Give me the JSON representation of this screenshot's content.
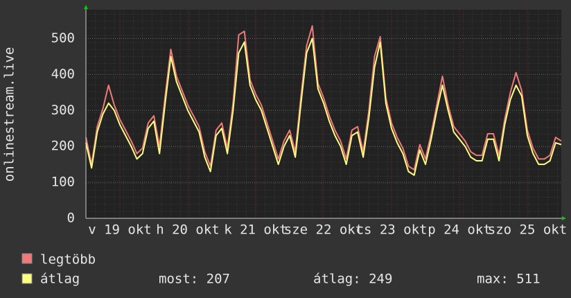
{
  "chart_data": {
    "type": "line",
    "y_label": "onlinestream.live",
    "x": [
      0,
      2,
      4,
      6,
      8,
      10,
      12,
      14,
      16,
      18,
      20,
      22,
      24,
      26,
      28,
      30,
      32,
      34,
      36,
      38,
      40,
      42,
      44,
      46,
      48,
      50,
      52,
      54,
      56,
      58,
      60,
      62,
      64,
      66,
      68,
      70,
      72,
      74,
      76,
      78,
      80,
      82,
      84,
      86,
      88,
      90,
      92,
      94,
      96,
      98,
      100,
      102,
      104,
      106,
      108,
      110,
      112,
      114,
      116,
      118,
      120,
      122,
      124,
      126,
      128,
      130,
      132,
      134,
      136,
      138,
      140,
      142,
      144,
      146,
      148,
      150,
      152,
      154,
      156,
      158,
      160,
      162,
      164,
      166,
      168
    ],
    "xlim": [
      0,
      168
    ],
    "xticks": [
      {
        "value": 12,
        "label": "v 19 okt"
      },
      {
        "value": 36,
        "label": "h 20 okt"
      },
      {
        "value": 60,
        "label": "k 21 okt"
      },
      {
        "value": 84,
        "label": "sze 22 okt"
      },
      {
        "value": 108,
        "label": "cs 23 okt"
      },
      {
        "value": 132,
        "label": "p 24 okt"
      },
      {
        "value": 156,
        "label": "szo 25 okt"
      }
    ],
    "ylim": [
      0,
      580
    ],
    "yticks": [
      0,
      100,
      200,
      300,
      400,
      500
    ],
    "grid": true,
    "series": [
      {
        "name": "legtöbb",
        "color": "#f07a7a",
        "values": [
          225,
          150,
          255,
          305,
          370,
          315,
          275,
          245,
          215,
          180,
          195,
          265,
          285,
          200,
          340,
          470,
          395,
          355,
          315,
          285,
          255,
          185,
          145,
          245,
          265,
          195,
          320,
          510,
          520,
          385,
          345,
          315,
          265,
          215,
          165,
          215,
          245,
          185,
          340,
          480,
          535,
          375,
          335,
          285,
          245,
          215,
          165,
          245,
          255,
          185,
          300,
          450,
          505,
          335,
          265,
          225,
          195,
          145,
          135,
          205,
          165,
          235,
          315,
          395,
          315,
          255,
          235,
          215,
          185,
          175,
          175,
          235,
          235,
          175,
          275,
          350,
          405,
          355,
          245,
          195,
          165,
          165,
          175,
          225,
          215
        ]
      },
      {
        "name": "átlag",
        "color": "#ffff80",
        "values": [
          210,
          140,
          240,
          290,
          320,
          300,
          260,
          230,
          200,
          165,
          180,
          250,
          270,
          180,
          320,
          450,
          380,
          340,
          300,
          270,
          240,
          170,
          130,
          230,
          250,
          180,
          300,
          460,
          490,
          370,
          330,
          300,
          250,
          200,
          150,
          200,
          230,
          170,
          320,
          460,
          500,
          360,
          320,
          270,
          230,
          200,
          150,
          230,
          240,
          170,
          280,
          420,
          490,
          320,
          250,
          210,
          180,
          130,
          120,
          190,
          150,
          220,
          300,
          370,
          300,
          240,
          220,
          200,
          170,
          160,
          160,
          220,
          220,
          160,
          260,
          330,
          370,
          340,
          230,
          180,
          150,
          150,
          160,
          210,
          205
        ]
      }
    ],
    "stats": [
      "most: 207",
      "átlag: 249",
      "max: 511"
    ]
  }
}
